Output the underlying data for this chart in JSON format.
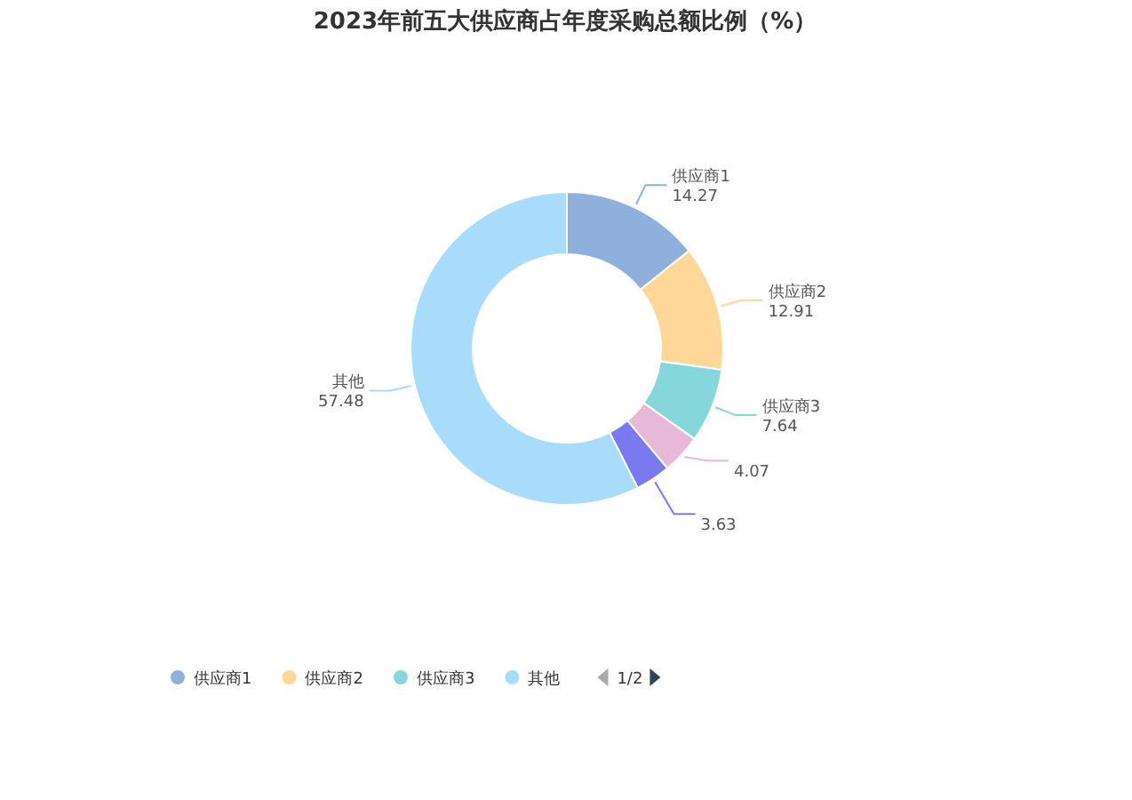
{
  "chart_data": {
    "type": "donut",
    "title": "2023年前五大供应商占年度采购总额比例（%）",
    "categories": [
      "供应商1",
      "供应商2",
      "供应商3",
      null,
      null,
      "其他"
    ],
    "values": [
      14.27,
      12.91,
      7.64,
      4.07,
      3.63,
      57.48
    ],
    "colors": [
      "#8fb0dd",
      "#ffd899",
      "#86d7db",
      "#e8b8d9",
      "#7a79ef",
      "#a8dcfa"
    ],
    "data_labels": true,
    "legend": "bottom",
    "annotations": [
      "1/2"
    ]
  }
}
